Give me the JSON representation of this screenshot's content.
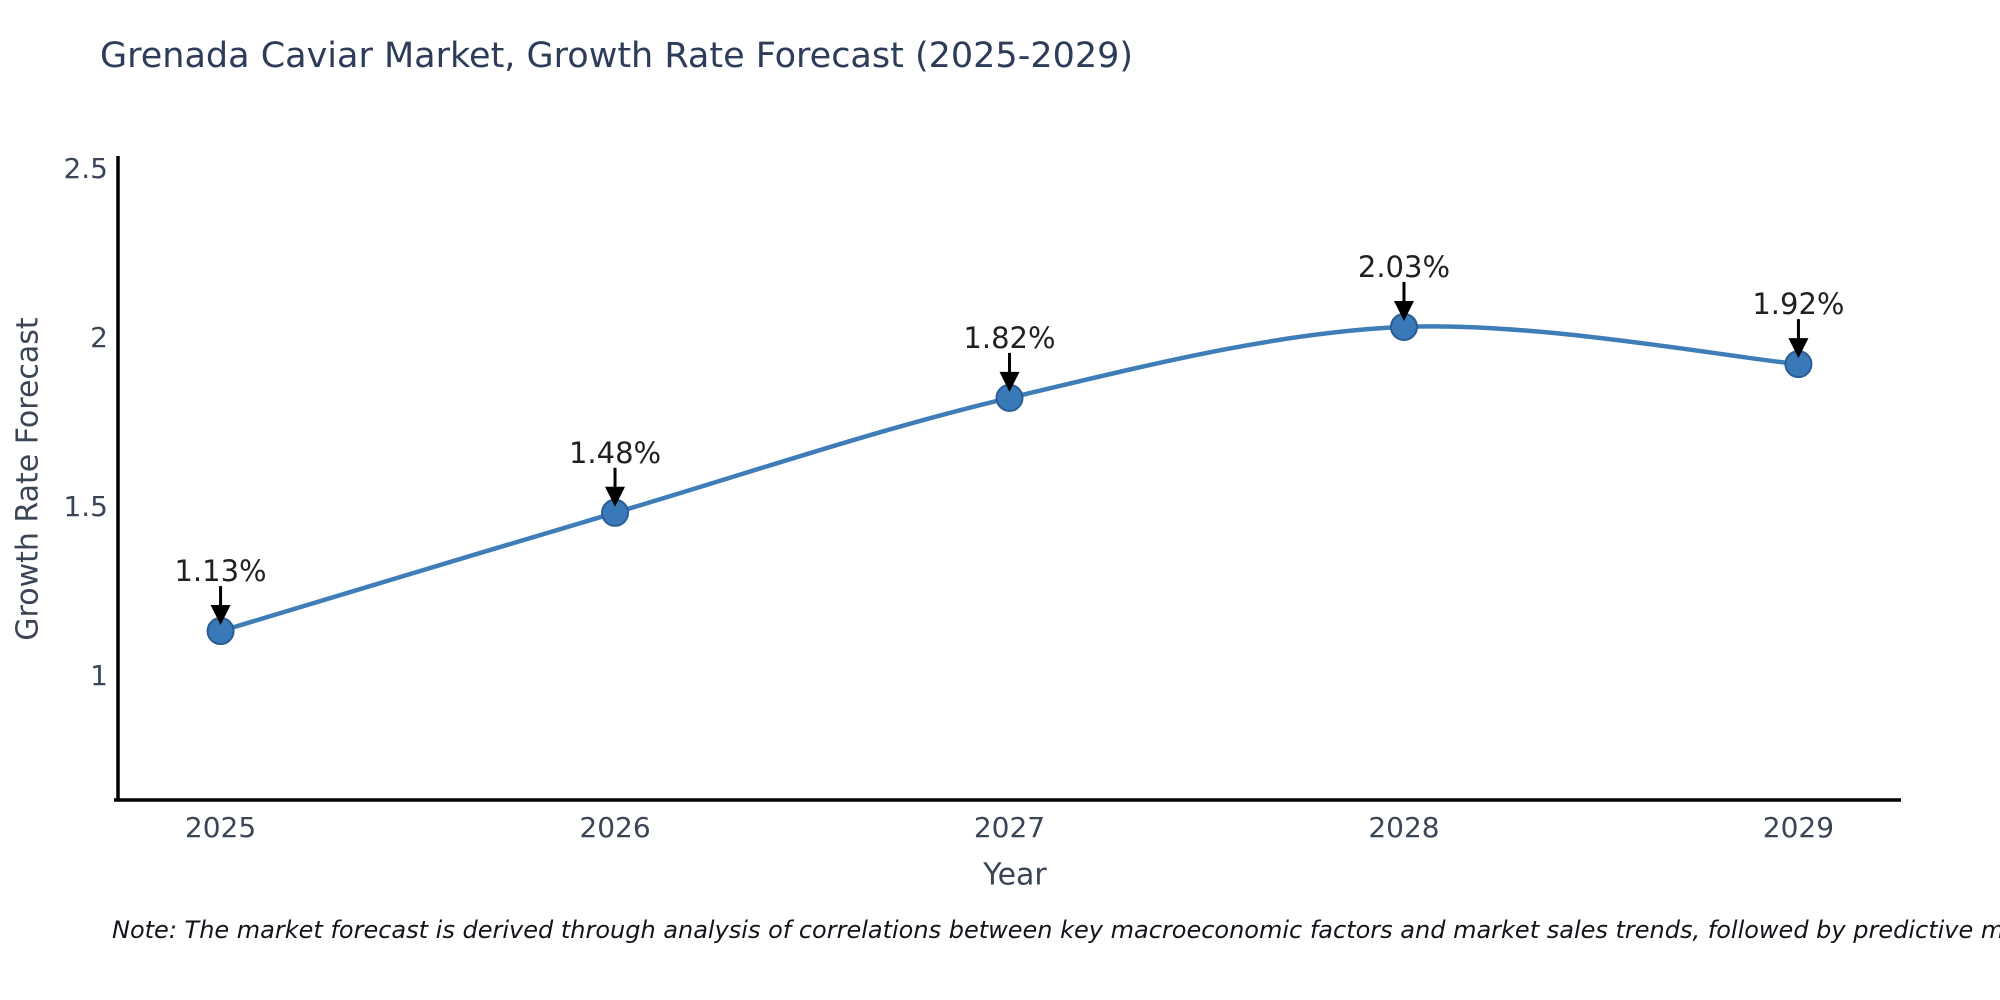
{
  "title": "Grenada Caviar Market, Growth Rate Forecast (2025-2029)",
  "note": "Note: The market forecast is derived through analysis of correlations between key macroeconomic factors and market sales trends, followed by predictive modeling to project future sales",
  "chart_data": {
    "type": "line",
    "title": "Grenada Caviar Market, Growth Rate Forecast (2025-2029)",
    "xlabel": "Year",
    "ylabel": "Growth Rate Forecast",
    "x": [
      2025,
      2026,
      2027,
      2028,
      2029
    ],
    "xtick_labels": [
      "2025",
      "2026",
      "2027",
      "2028",
      "2029"
    ],
    "values": [
      1.13,
      1.48,
      1.82,
      2.03,
      1.92
    ],
    "point_labels": [
      "1.13%",
      "1.48%",
      "1.82%",
      "2.03%",
      "1.92%"
    ],
    "yticks": [
      1,
      1.5,
      2,
      2.5
    ],
    "ytick_labels": [
      "1",
      "1.5",
      "2",
      "2.5"
    ],
    "xlim": [
      2024.74,
      2029.26
    ],
    "ylim": [
      0.63,
      2.53
    ],
    "grid": false,
    "legend_position": "none",
    "smooth": true,
    "line_color": "#3f7db8",
    "marker_color": "#3a79b8",
    "marker_edge_color": "#2a5d94",
    "arrow_color": "#000000",
    "annotation_text_color": "#1f2024",
    "tick_label_color": "#3a4556",
    "axis_color": "#000000",
    "background_color": "#ffffff"
  }
}
